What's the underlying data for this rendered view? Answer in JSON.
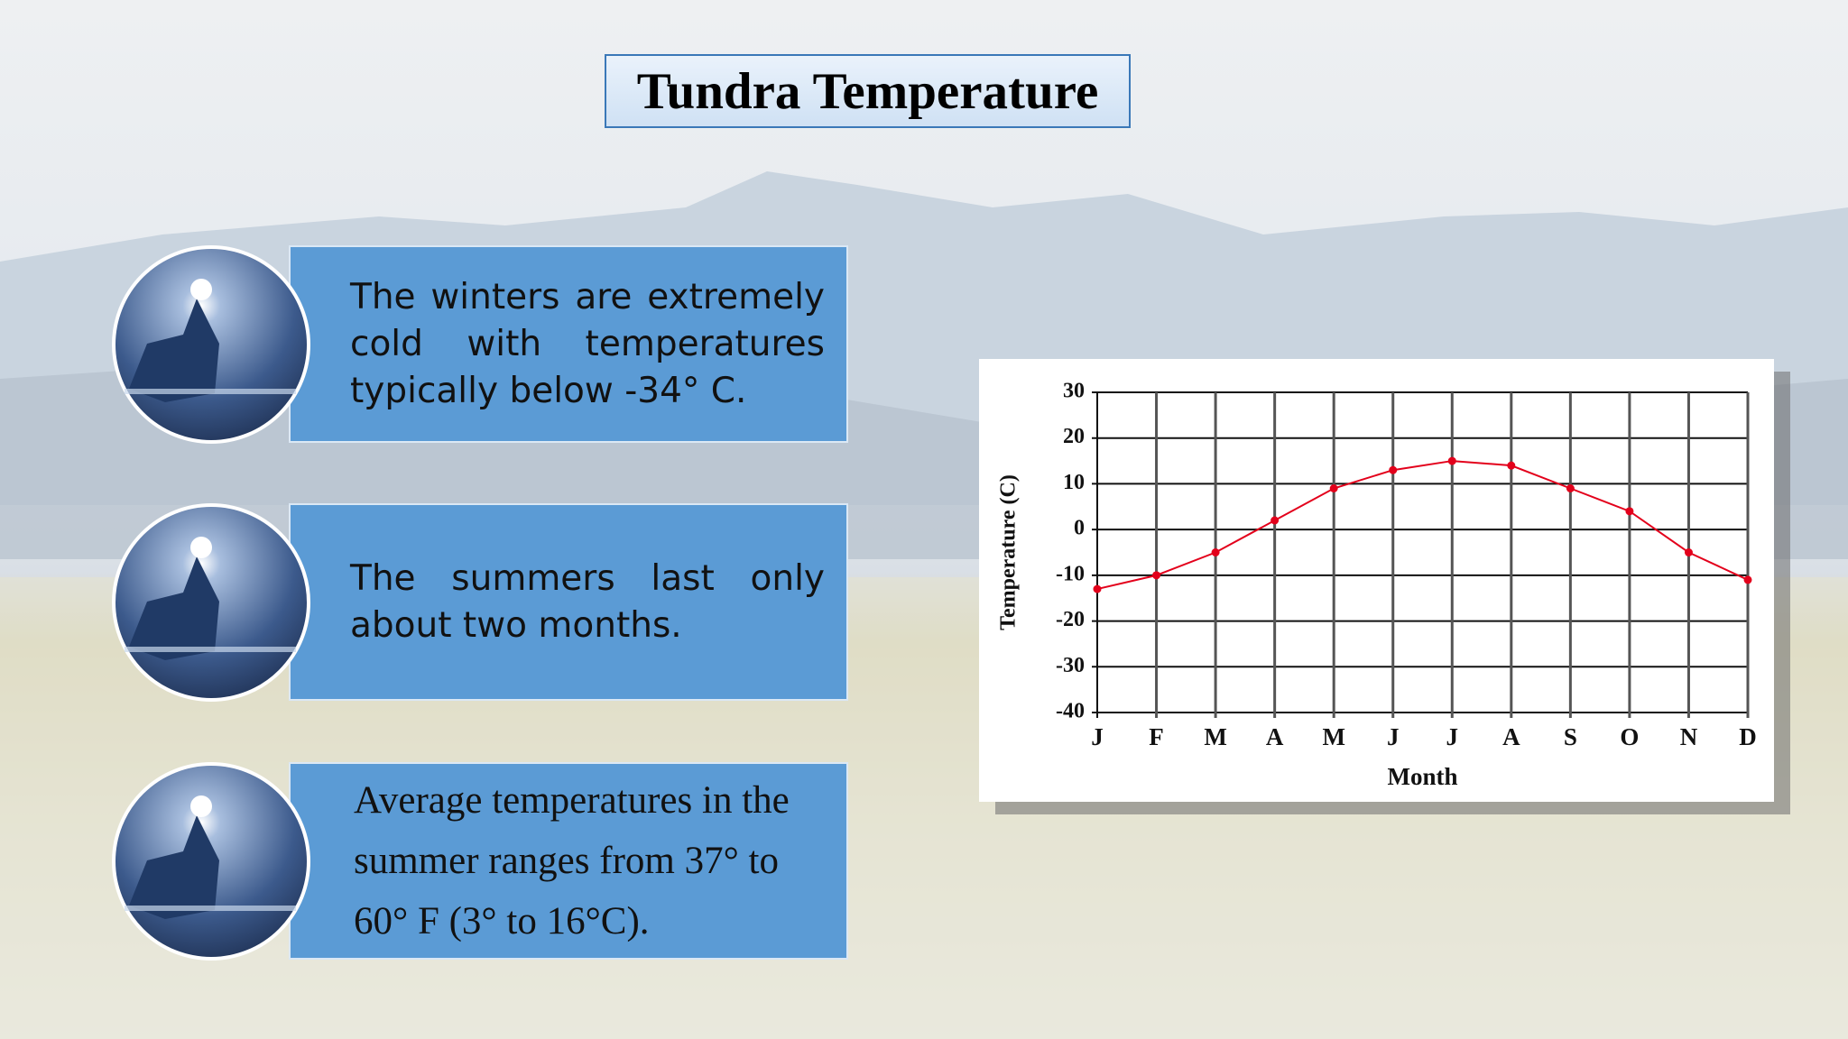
{
  "header": {
    "title": "Tundra Temperature"
  },
  "cards": [
    {
      "text": "The winters are extremely cold with temperatures typically below -34° C."
    },
    {
      "text": "The summers last only about two months."
    },
    {
      "text": "Average temperatures in the summer ranges from 37° to 60° F (3° to 16°C)."
    }
  ],
  "chart_data": {
    "type": "line",
    "x_label": "Month",
    "y_label": "Temperature (C)",
    "categories": [
      "J",
      "F",
      "M",
      "A",
      "M",
      "J",
      "J",
      "A",
      "S",
      "O",
      "N",
      "D"
    ],
    "series": [
      {
        "color": "#e3001b",
        "values": [
          -13,
          -10,
          -5,
          2,
          9,
          13,
          15,
          14,
          9,
          4,
          -5,
          -11
        ]
      }
    ],
    "ylim": [
      -40,
      30
    ],
    "yticks": [
      -40,
      -30,
      -20,
      -10,
      0,
      10,
      20,
      30
    ],
    "grid": true
  }
}
